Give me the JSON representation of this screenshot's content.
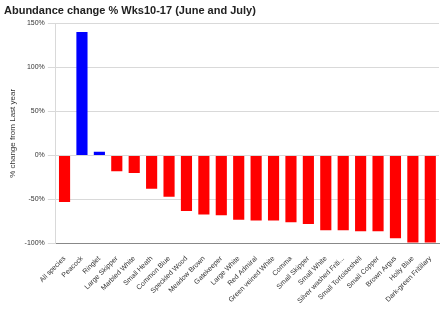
{
  "chart_data": {
    "type": "bar",
    "title": "Abundance change % Wks10-17 (June and July)",
    "y_label": "% change from Last year",
    "categories": [
      "All species",
      "Peacock",
      "Ringlet",
      "Large Skipper",
      "Marbled White",
      "Small Heath",
      "Common Blue",
      "Speckled Wood",
      "Meadow Brown",
      "Gatekeeper",
      "Large White",
      "Red Admiral",
      "Green veined White",
      "Comma",
      "Small Skipper",
      "Small White",
      "Silver washed Friti...",
      "Small Tortoiseshell",
      "Small Copper",
      "Brown Argus",
      "Holly Blue",
      "Dark-green Fritillary"
    ],
    "values": [
      -53,
      140,
      4,
      -18,
      -20,
      -38,
      -47,
      -63,
      -67,
      -68,
      -73,
      -74,
      -74,
      -76,
      -78,
      -85,
      -85,
      -86,
      -86,
      -94,
      -99,
      -99
    ],
    "colors": [
      "#ff0000",
      "#0000ff",
      "#0000ff",
      "#ff0000",
      "#ff0000",
      "#ff0000",
      "#ff0000",
      "#ff0000",
      "#ff0000",
      "#ff0000",
      "#ff0000",
      "#ff0000",
      "#ff0000",
      "#ff0000",
      "#ff0000",
      "#ff0000",
      "#ff0000",
      "#ff0000",
      "#ff0000",
      "#ff0000",
      "#ff0000",
      "#ff0000"
    ],
    "ylim": [
      -100,
      150
    ],
    "yticks": [
      {
        "value": -100,
        "label": "-100%"
      },
      {
        "value": -50,
        "label": "-50%"
      },
      {
        "value": 0,
        "label": "0%"
      },
      {
        "value": 50,
        "label": "50%"
      },
      {
        "value": 100,
        "label": "100%"
      },
      {
        "value": 150,
        "label": "150%"
      }
    ],
    "grid": true
  }
}
